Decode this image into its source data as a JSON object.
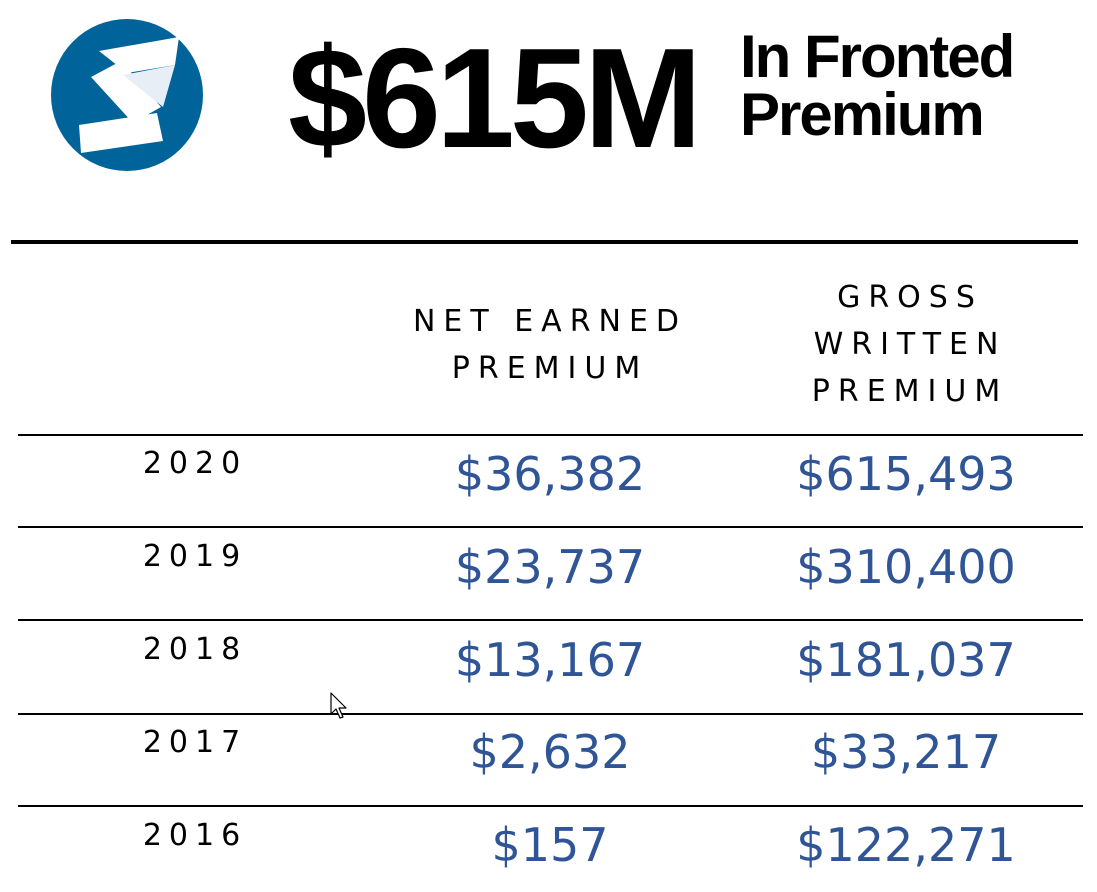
{
  "header": {
    "logo": "company-logo-s",
    "amount": "$615M",
    "subtitle_line1": "In Fronted",
    "subtitle_line2": "Premium"
  },
  "table": {
    "columns": {
      "net": [
        "NET EARNED",
        "PREMIUM"
      ],
      "gross": [
        "GROSS",
        "WRITTEN",
        "PREMIUM"
      ]
    },
    "rows": [
      {
        "year": "2020",
        "net_earned_premium": "$36,382",
        "gross_written_premium": "$615,493"
      },
      {
        "year": "2019",
        "net_earned_premium": "$23,737",
        "gross_written_premium": "$310,400"
      },
      {
        "year": "2018",
        "net_earned_premium": "$13,167",
        "gross_written_premium": "$181,037"
      },
      {
        "year": "2017",
        "net_earned_premium": "$2,632",
        "gross_written_premium": "$33,217"
      },
      {
        "year": "2016",
        "net_earned_premium": "$157",
        "gross_written_premium": "$122,271"
      }
    ]
  },
  "colors": {
    "logo_blue": "#00649a",
    "value_blue": "#2f5597",
    "text": "#000000"
  },
  "icons": [
    "company-logo-s",
    "mouse-pointer-icon"
  ]
}
